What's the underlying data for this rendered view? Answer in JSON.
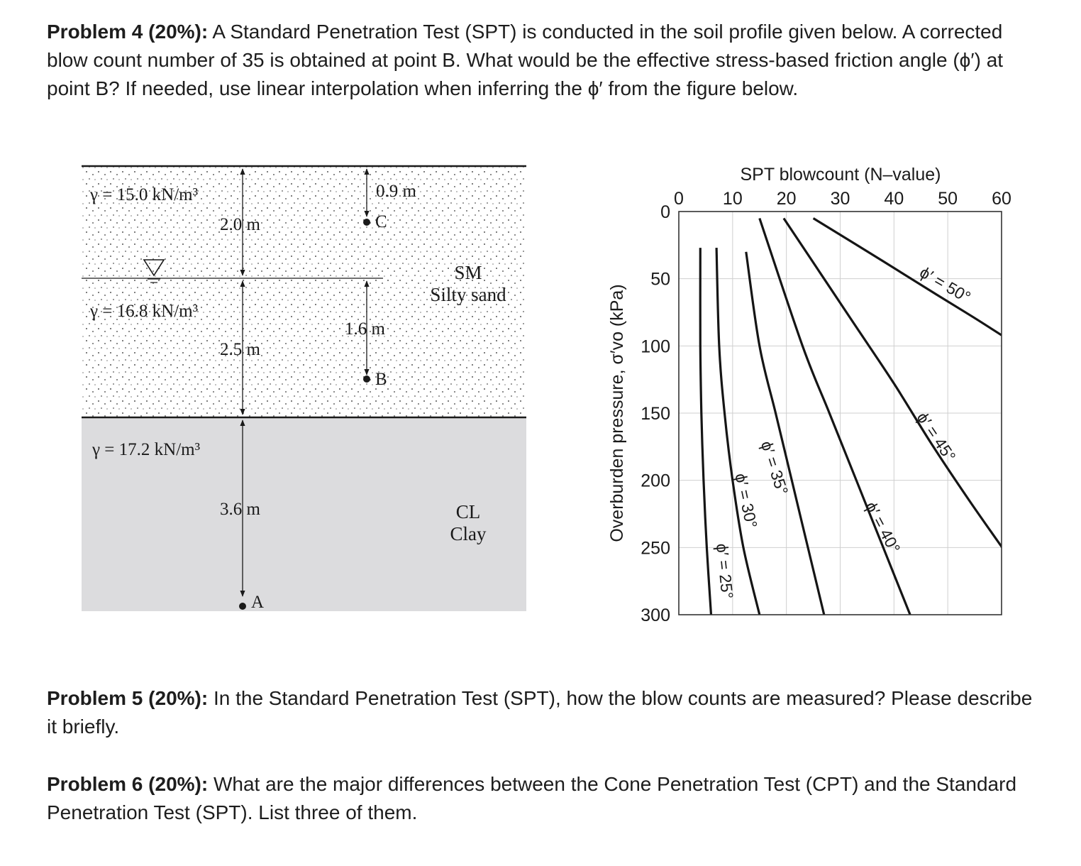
{
  "problem4": {
    "label": "Problem 4",
    "weight": " (20%):",
    "text": " A Standard Penetration Test (SPT) is conducted in the soil profile given below. A corrected blow count number of 35 is obtained at point B. What would be the effective stress-based friction angle (ϕ′) at point B? If needed, use linear interpolation when inferring the ϕ′ from the figure below."
  },
  "problem5": {
    "label": "Problem 5",
    "weight": " (20%):",
    "text": " In the Standard Penetration Test (SPT), how the blow counts are measured? Please describe it briefly."
  },
  "problem6": {
    "label": "Problem 6",
    "weight": " (20%):",
    "text": " What are the major differences between the Cone Penetration Test (CPT) and the Standard Penetration Test (SPT). List three of them."
  },
  "soil_profile": {
    "layer1_gamma": "γ = 15.0 kN/m³",
    "layer1_thickness": "2.0 m",
    "layer2_gamma": "γ = 16.8 kN/m³",
    "layer2_thickness": "2.5 m",
    "layer3_gamma": "γ = 17.2 kN/m³",
    "layer3_thickness": "3.6 m",
    "dim_c": "0.9 m",
    "dim_b": "1.6 m",
    "point_c": "C",
    "point_b": "B",
    "point_a": "A",
    "sand_code": "SM",
    "sand_name": "Silty sand",
    "clay_code": "CL",
    "clay_name": "Clay",
    "colors": {
      "clay_fill": "#dcdcde",
      "line": "#1a1a1a"
    }
  },
  "chart_data": {
    "type": "line",
    "title": "SPT blowcount (N–value)",
    "xlabel": "SPT blowcount (N–value)",
    "ylabel": "Overburden pressure, σ′vo (kPa)",
    "xlim": [
      0,
      60
    ],
    "ylim": [
      0,
      300
    ],
    "y_inverted": true,
    "x_axis_position": "top",
    "x_ticks": [
      0,
      10,
      20,
      30,
      40,
      50,
      60
    ],
    "y_ticks": [
      0,
      50,
      100,
      150,
      200,
      250,
      300
    ],
    "grid": true,
    "series": [
      {
        "name": "ϕ′ = 25°",
        "x": [
          4.0,
          4.0,
          4.2,
          4.6,
          5.2,
          6.0
        ],
        "y": [
          27,
          100,
          150,
          200,
          250,
          300
        ]
      },
      {
        "name": "ϕ′ = 30°",
        "x": [
          7.0,
          7.5,
          8.5,
          10.0,
          12.0,
          15.0
        ],
        "y": [
          27,
          100,
          150,
          200,
          250,
          300
        ]
      },
      {
        "name": "ϕ′ = 35°",
        "x": [
          12.5,
          15.0,
          18.0,
          21.0,
          24.0,
          27.0
        ],
        "y": [
          30,
          100,
          150,
          200,
          250,
          300
        ]
      },
      {
        "name": "ϕ′ = 40°",
        "x": [
          15.0,
          23.0,
          28.0,
          33.0,
          38.0,
          43.0
        ],
        "y": [
          5,
          100,
          150,
          200,
          250,
          300
        ]
      },
      {
        "name": "ϕ′ = 45°",
        "x": [
          19.5,
          32.0,
          40.0,
          47.0,
          54.0,
          61.0
        ],
        "y": [
          5,
          80,
          128,
          173,
          215,
          255
        ]
      },
      {
        "name": "ϕ′ = 50°",
        "x": [
          25.0,
          38.0,
          48.0,
          54.5,
          60.0
        ],
        "y": [
          5,
          37,
          62,
          78,
          92
        ]
      }
    ]
  }
}
